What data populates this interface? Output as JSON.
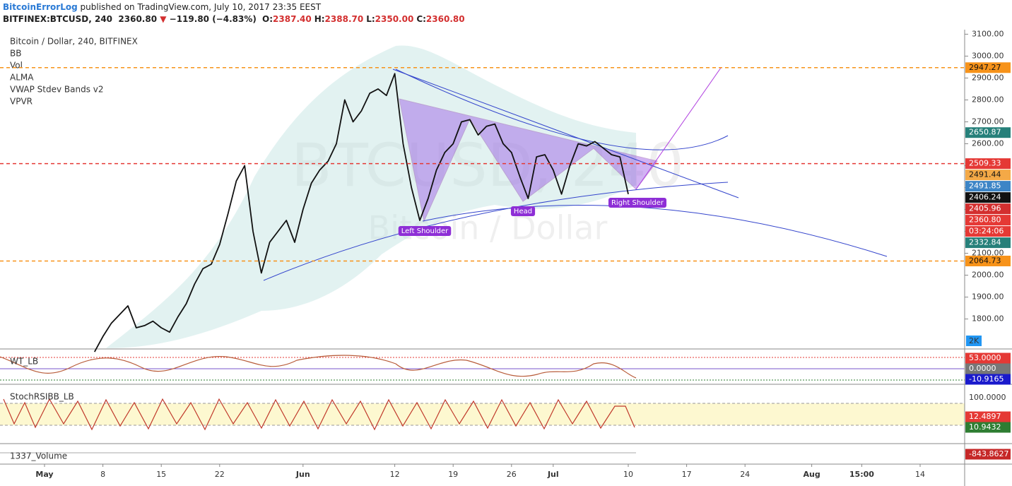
{
  "header": {
    "author": "BitcoinErrorLog",
    "published": "published on TradingView.com, July 10, 2017 23:35 EEST",
    "symbol": "BITFINEX:BTCUSD, 240",
    "last": "2360.80",
    "arrow": "▼",
    "change": "−119.80 (−4.83%)",
    "ohlc": [
      {
        "key": "O:",
        "value": "2387.40"
      },
      {
        "key": "H:",
        "value": "2388.70"
      },
      {
        "key": "L:",
        "value": "2350.00"
      },
      {
        "key": "C:",
        "value": "2360.80"
      }
    ]
  },
  "legend": [
    "Bitcoin / Dollar, 240, BITFINEX",
    "BB",
    "Vol",
    "ALMA",
    "VWAP Stdev Bands v2",
    "VPVR"
  ],
  "watermark": {
    "symbol": "BTCUSD, 240",
    "name": "Bitcoin / Dollar"
  },
  "pattern_labels": [
    "Left Shoulder",
    "Head",
    "Right Shoulder"
  ],
  "volume_scale": "2K",
  "chart_data": {
    "type": "line",
    "color": "#111111",
    "categories": [
      "May",
      null,
      null,
      null,
      null,
      null,
      null,
      "8",
      null,
      null,
      null,
      null,
      null,
      null,
      "15",
      null,
      null,
      null,
      null,
      null,
      null,
      "22",
      null,
      null,
      null,
      null,
      null,
      null,
      null,
      null,
      null,
      "Jun",
      null,
      null,
      null,
      null,
      null,
      null,
      null,
      null,
      null,
      null,
      "12",
      null,
      null,
      null,
      null,
      null,
      null,
      "19",
      null,
      null,
      null,
      null,
      null,
      null,
      "26",
      null,
      null,
      null,
      null,
      "Jul",
      null,
      null,
      null,
      null,
      null,
      null,
      null,
      null,
      "10",
      null,
      null,
      null,
      null,
      null,
      null,
      "17",
      null,
      null,
      null,
      null,
      null,
      null,
      "24",
      null,
      null,
      null,
      null,
      null,
      null,
      null,
      "Aug",
      null,
      null,
      null,
      null,
      null,
      "15:00",
      null,
      null,
      null,
      null,
      null,
      null,
      "14",
      null,
      null,
      null,
      null
    ],
    "values": [
      null,
      null,
      null,
      null,
      null,
      null,
      1650,
      1720,
      1780,
      1820,
      1860,
      1760,
      1770,
      1790,
      1760,
      1740,
      1810,
      1870,
      1960,
      2030,
      2050,
      2140,
      2280,
      2430,
      2500,
      2200,
      2010,
      2150,
      2200,
      2250,
      2150,
      2300,
      2420,
      2480,
      2520,
      2600,
      2800,
      2700,
      2750,
      2830,
      2850,
      2820,
      2920,
      2600,
      2400,
      2250,
      2350,
      2480,
      2560,
      2600,
      2700,
      2710,
      2640,
      2680,
      2690,
      2600,
      2560,
      2450,
      2350,
      2540,
      2550,
      2480,
      2370,
      2500,
      2600,
      2590,
      2610,
      2580,
      2550,
      2540,
      2370,
      null,
      null,
      null,
      null,
      null,
      null,
      null,
      null,
      null,
      null,
      null,
      null,
      null,
      null,
      null,
      null,
      null,
      null,
      null,
      null,
      null,
      null,
      null,
      null,
      null,
      null,
      null,
      null,
      null,
      null,
      null,
      null,
      null,
      null,
      null,
      null,
      null,
      null,
      null
    ],
    "ylim": [
      1660,
      3140
    ],
    "yticks": [
      {
        "value": 3100,
        "label": "3100.00"
      },
      {
        "value": 3000,
        "label": "3000.00"
      },
      {
        "value": 2900,
        "label": "2900.00"
      },
      {
        "value": 2800,
        "label": "2800.00"
      },
      {
        "value": 2700,
        "label": "2700.00"
      },
      {
        "value": 2600,
        "label": "2600.00"
      },
      {
        "value": 2500,
        "label": "2500.00"
      },
      {
        "value": 2400,
        "label": "2400.00"
      },
      {
        "value": 2300,
        "label": "2300.00"
      },
      {
        "value": 2200,
        "label": "2200.00"
      },
      {
        "value": 2100,
        "label": "2100.00"
      },
      {
        "value": 2000,
        "label": "2000.00"
      },
      {
        "value": 1900,
        "label": "1900.00"
      },
      {
        "value": 1800,
        "label": "1800.00"
      }
    ],
    "price_tags": [
      {
        "value": 2947.27,
        "label": "2947.27",
        "color": "#f7931a",
        "text_color": "#111111",
        "line": "dashed"
      },
      {
        "value": 2650.87,
        "label": "2650.87",
        "color": "#26807a",
        "text_color": "#ffffff"
      },
      {
        "value": 2509.33,
        "label": "2509.33",
        "color": "#e53935",
        "text_color": "#ffffff",
        "line": "dashed"
      },
      {
        "value": 2491.44,
        "label": "2491.44",
        "color": "#f4a947",
        "text_color": "#111111"
      },
      {
        "value": 2491.85,
        "label": "2491.85",
        "color": "#3d85c6",
        "text_color": "#ffffff"
      },
      {
        "value": 2406.24,
        "label": "2406.24",
        "color": "#111111",
        "text_color": "#ffffff"
      },
      {
        "value": 2405.96,
        "label": "2405.96",
        "color": "#d32f2f",
        "text_color": "#ffffff"
      },
      {
        "value": 2360.8,
        "label": "2360.80",
        "color": "#e53935",
        "text_color": "#ffffff"
      },
      {
        "label": "03:24:06",
        "color": "#e53935",
        "text_color": "#ffffff"
      },
      {
        "value": 2332.84,
        "label": "2332.84",
        "color": "#26807a",
        "text_color": "#ffffff"
      },
      {
        "value": 2064.73,
        "label": "2064.73",
        "color": "#f7931a",
        "text_color": "#111111",
        "line": "dashed"
      }
    ]
  },
  "panels": [
    {
      "title": "WT_LB",
      "tags": [
        {
          "label": "53.0000",
          "color": "#e53935"
        },
        {
          "label": "0.0000",
          "color": "#777777"
        },
        {
          "label": "-10.9165",
          "color": "#1a1acc"
        }
      ]
    },
    {
      "title": "StochRSIBB_LB",
      "tags": [
        {
          "label": "100.0000",
          "color": "#ffffff"
        },
        {
          "label": "12.4897",
          "color": "#e53935"
        },
        {
          "label": "10.9432",
          "color": "#2e7d32"
        }
      ]
    },
    {
      "title": "1337_Volume",
      "tags": [
        {
          "label": "-843.8627",
          "color": "#c62828"
        }
      ]
    }
  ]
}
